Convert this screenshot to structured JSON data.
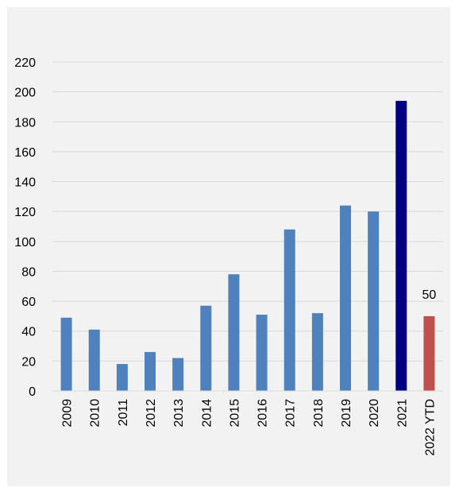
{
  "chart_data": {
    "type": "bar",
    "title": "",
    "xlabel": "",
    "ylabel": "",
    "categories": [
      "2009",
      "2010",
      "2011",
      "2012",
      "2013",
      "2014",
      "2015",
      "2016",
      "2017",
      "2018",
      "2019",
      "2020",
      "2021",
      "2022 YTD"
    ],
    "values": [
      49,
      41,
      18,
      26,
      22,
      57,
      78,
      51,
      108,
      52,
      124,
      120,
      194,
      50
    ],
    "colors": [
      "#4f81bd",
      "#4f81bd",
      "#4f81bd",
      "#4f81bd",
      "#4f81bd",
      "#4f81bd",
      "#4f81bd",
      "#4f81bd",
      "#4f81bd",
      "#4f81bd",
      "#4f81bd",
      "#4f81bd",
      "#000080",
      "#c0504d"
    ],
    "ylim": [
      0,
      220
    ],
    "yticks": [
      0,
      20,
      40,
      60,
      80,
      100,
      120,
      140,
      160,
      180,
      200,
      220
    ],
    "grid": true,
    "legend": "none",
    "data_labels": [
      {
        "category": "2022 YTD",
        "text": "50"
      }
    ]
  }
}
